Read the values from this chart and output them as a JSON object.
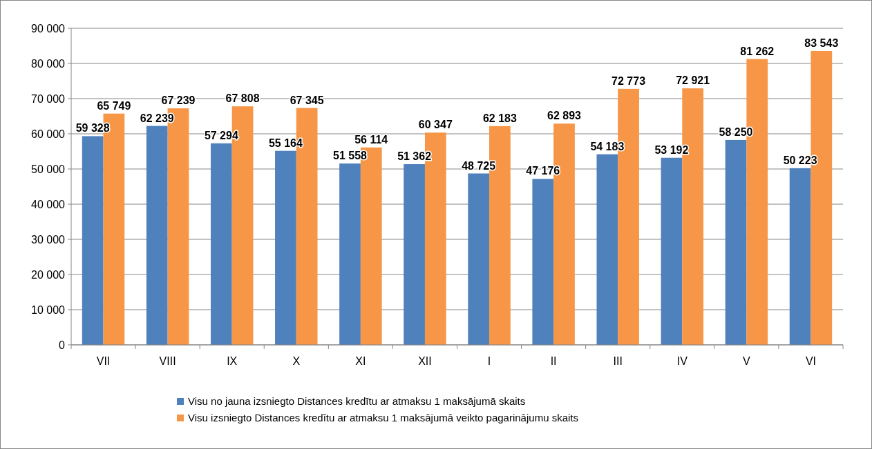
{
  "chart_data": {
    "type": "bar",
    "categories": [
      "VII",
      "VIII",
      "IX",
      "X",
      "XI",
      "XII",
      "I",
      "II",
      "III",
      "IV",
      "V",
      "VI"
    ],
    "series": [
      {
        "name": "Visu no jauna izsniegto Distances kredītu ar atmaksu 1 maksājumā skaits",
        "color": "#4f81bd",
        "values": [
          59328,
          62239,
          57294,
          55164,
          51558,
          51362,
          48725,
          47176,
          54183,
          53192,
          58250,
          50223
        ]
      },
      {
        "name": "Visu izsniegto Distances kredītu ar atmaksu 1 maksājumā veikto pagarinājumu skaits",
        "color": "#f79646",
        "values": [
          65749,
          67239,
          67808,
          67345,
          56114,
          60347,
          62183,
          62893,
          72773,
          72921,
          81262,
          83543
        ]
      }
    ],
    "ylim": [
      0,
      90000
    ],
    "yticks": [
      {
        "value": 0,
        "label": "0"
      },
      {
        "value": 10000,
        "label": "10 000"
      },
      {
        "value": 20000,
        "label": "20 000"
      },
      {
        "value": 30000,
        "label": "30 000"
      },
      {
        "value": 40000,
        "label": "40 000"
      },
      {
        "value": 50000,
        "label": "50 000"
      },
      {
        "value": 60000,
        "label": "60 000"
      },
      {
        "value": 70000,
        "label": "70 000"
      },
      {
        "value": 80000,
        "label": "80 000"
      },
      {
        "value": 90000,
        "label": "90 000"
      }
    ],
    "grid": "y",
    "legend": "bottom",
    "data_labels": true
  }
}
